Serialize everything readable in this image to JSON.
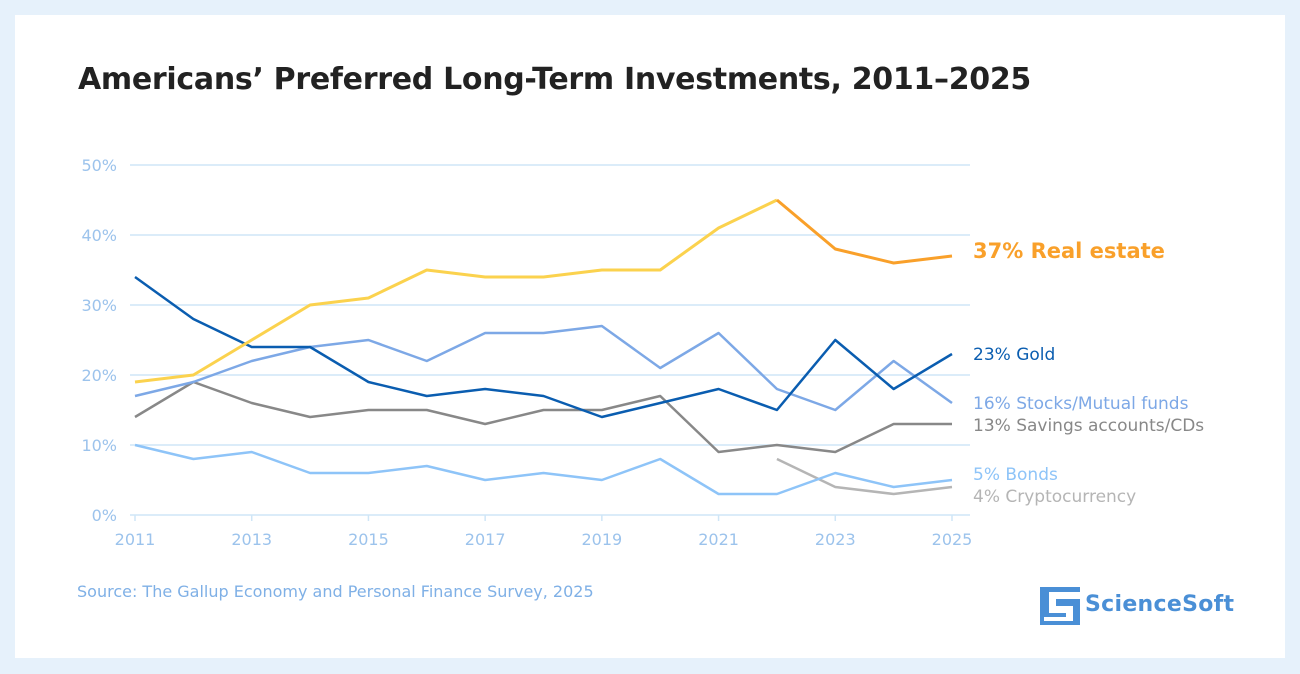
{
  "title": "Americans’ Preferred Long-Term Investments, 2011–2025",
  "source": "Source: The Gallup Economy and Personal Finance Survey, 2025",
  "logo": {
    "text": "ScienceSoft",
    "icon": "sciencesoft-logo-icon"
  },
  "chart_data": {
    "type": "line",
    "x": [
      2011,
      2012,
      2013,
      2014,
      2015,
      2016,
      2017,
      2018,
      2019,
      2020,
      2021,
      2022,
      2023,
      2024,
      2025
    ],
    "xticks": [
      "2011",
      "2013",
      "2015",
      "2017",
      "2019",
      "2021",
      "2023",
      "2025"
    ],
    "yticks": [
      "0%",
      "10%",
      "20%",
      "30%",
      "40%",
      "50%"
    ],
    "ylim": [
      0,
      50
    ],
    "grid": true,
    "legend": "right (end-of-line labels)",
    "series": [
      {
        "name": "Real estate",
        "label": "37% Real estate",
        "color": "#f9a02a",
        "color_secondary": "#fbd24e",
        "values": [
          19,
          20,
          25,
          30,
          31,
          35,
          34,
          34,
          35,
          35,
          41,
          45,
          38,
          36,
          37
        ]
      },
      {
        "name": "Gold",
        "label": "23% Gold",
        "color": "#0a5db0",
        "values": [
          34,
          28,
          24,
          24,
          19,
          17,
          18,
          17,
          14,
          16,
          18,
          15,
          25,
          18,
          23
        ]
      },
      {
        "name": "Stocks/Mutual funds",
        "label": "16% Stocks/Mutual funds",
        "color": "#7da8e6",
        "values": [
          17,
          19,
          22,
          24,
          25,
          22,
          26,
          26,
          27,
          21,
          26,
          18,
          15,
          22,
          16
        ]
      },
      {
        "name": "Savings accounts/CDs",
        "label": "13% Savings accounts/CDs",
        "color": "#888888",
        "values": [
          14,
          19,
          16,
          14,
          15,
          15,
          13,
          15,
          15,
          17,
          9,
          10,
          9,
          13,
          13
        ]
      },
      {
        "name": "Bonds",
        "label": "5% Bonds",
        "color": "#8ec4f8",
        "values": [
          10,
          8,
          9,
          6,
          6,
          7,
          5,
          6,
          5,
          8,
          3,
          3,
          6,
          4,
          5
        ]
      },
      {
        "name": "Cryptocurrency",
        "label": "4% Cryptocurrency",
        "color": "#b5b5b5",
        "values": [
          null,
          null,
          null,
          null,
          null,
          null,
          null,
          null,
          null,
          null,
          null,
          8,
          4,
          3,
          4
        ]
      }
    ]
  }
}
